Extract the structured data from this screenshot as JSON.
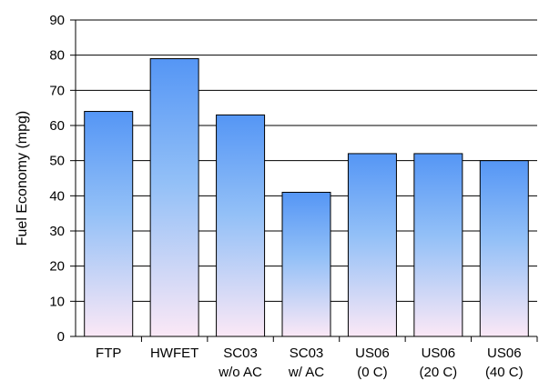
{
  "chart_data": {
    "type": "bar",
    "title": "",
    "xlabel": "",
    "ylabel": "Fuel Economy (mpg)",
    "categories": [
      [
        "FTP"
      ],
      [
        "HWFET"
      ],
      [
        "SC03",
        "w/o AC"
      ],
      [
        "SC03",
        "w/ AC"
      ],
      [
        "US06",
        "(0 C)"
      ],
      [
        "US06",
        "(20 C)"
      ],
      [
        "US06",
        "(40 C)"
      ]
    ],
    "values": [
      64,
      79,
      63,
      41,
      52,
      52,
      50
    ],
    "ylim": [
      0,
      90
    ],
    "ytick_step": 10,
    "grid": true,
    "legend": "none",
    "colors": {
      "bar_top": "#5596f5",
      "bar_mid": "#93c0f7",
      "bar_bottom": "#fbe8f6",
      "bar_border": "#000000",
      "grid": "#000000"
    }
  }
}
